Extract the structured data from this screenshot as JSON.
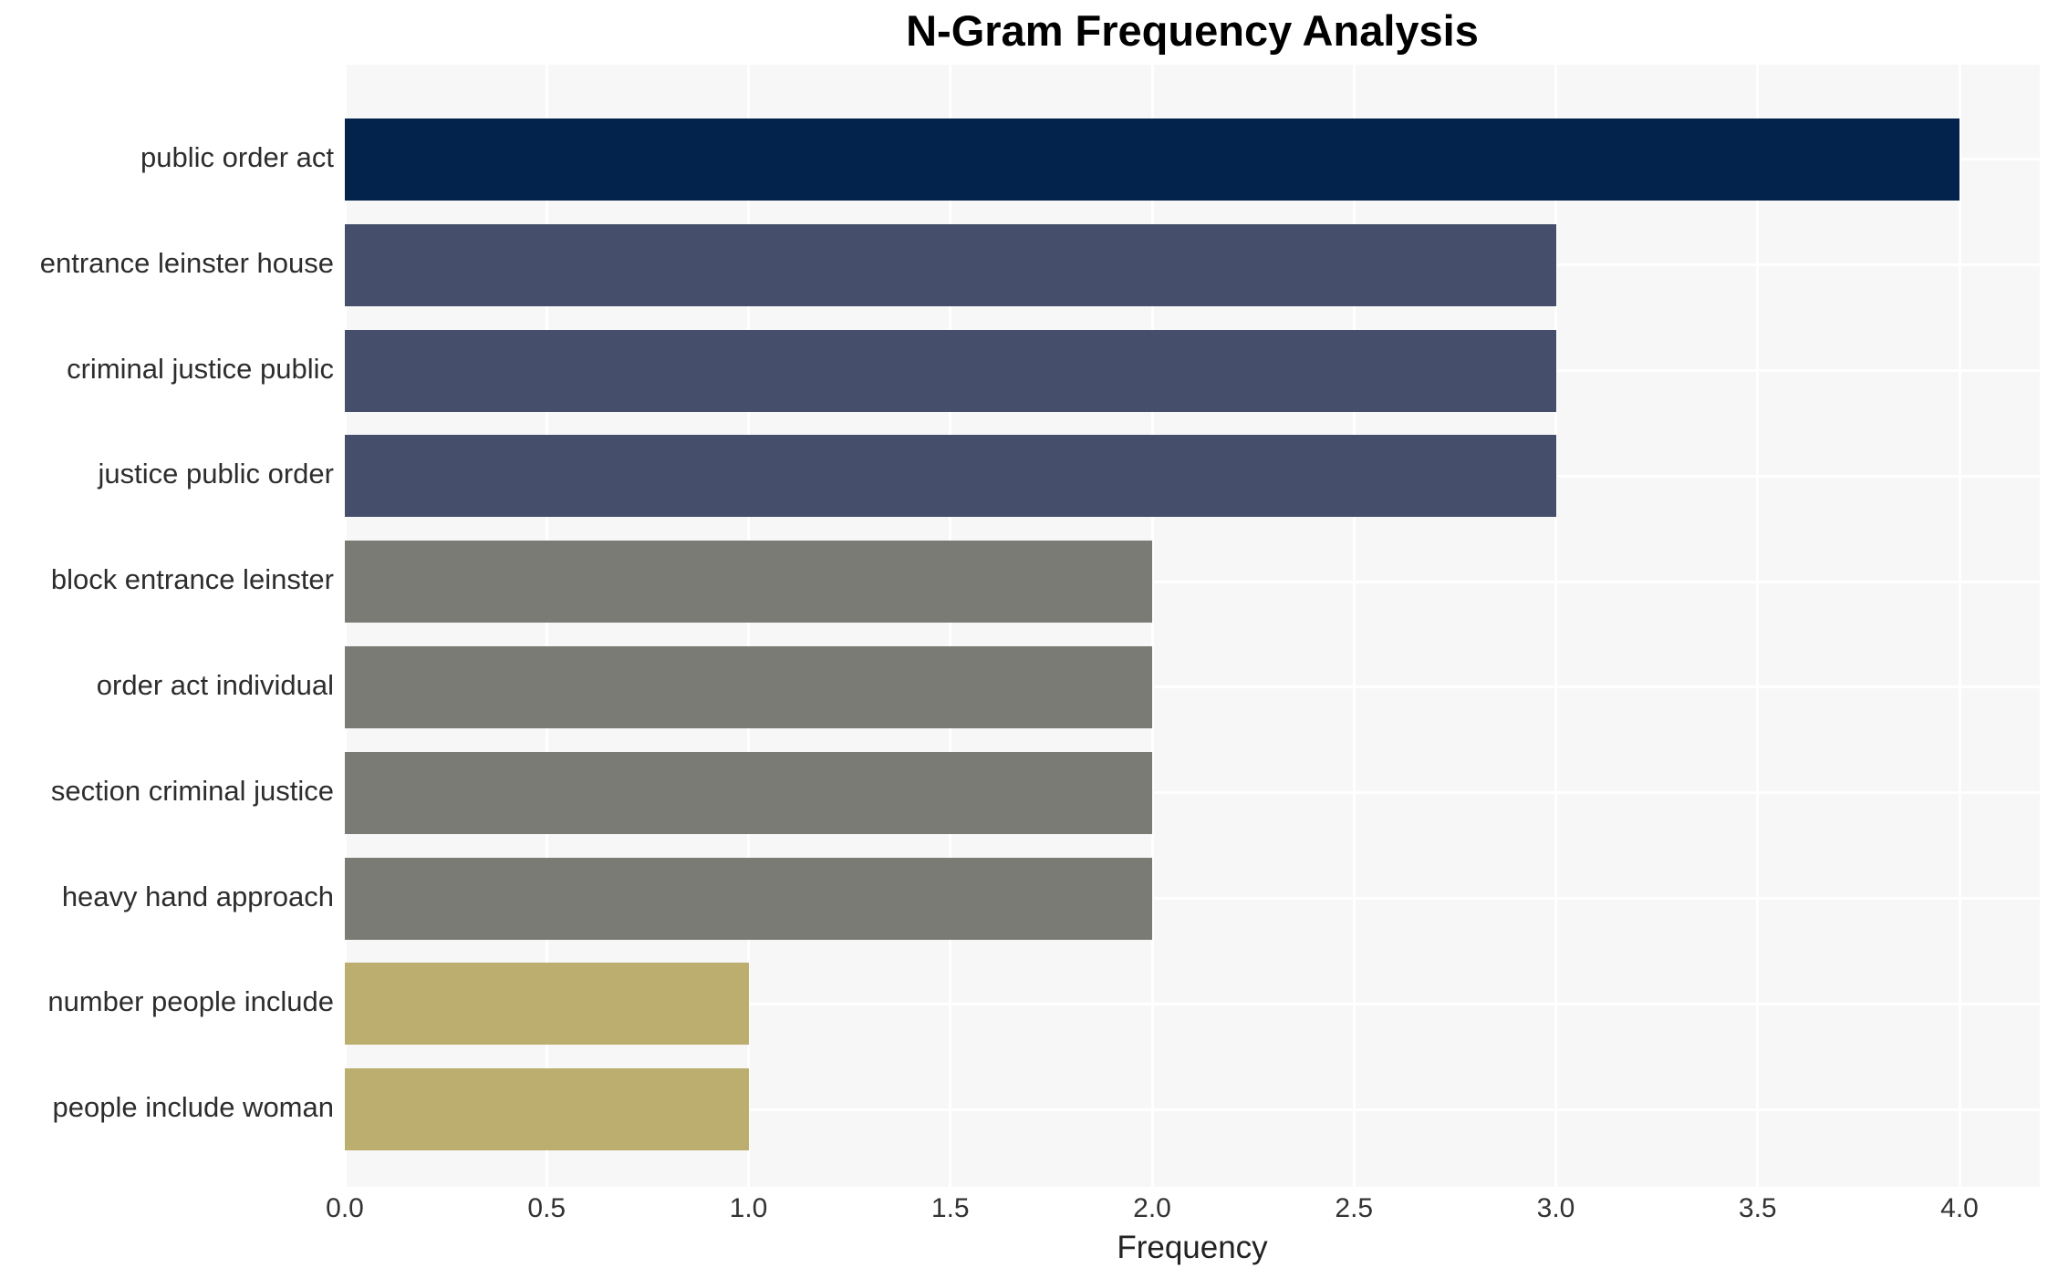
{
  "chart_data": {
    "type": "bar",
    "orientation": "horizontal",
    "title": "N-Gram Frequency Analysis",
    "xlabel": "Frequency",
    "ylabel": "",
    "categories": [
      "public order act",
      "entrance leinster house",
      "criminal justice public",
      "justice public order",
      "block entrance leinster",
      "order act individual",
      "section criminal justice",
      "heavy hand approach",
      "number people include",
      "people include woman"
    ],
    "values": [
      4,
      3,
      3,
      3,
      2,
      2,
      2,
      2,
      1,
      1
    ],
    "bar_colors": [
      "#03234c",
      "#454f6b",
      "#454f6b",
      "#454f6b",
      "#7b7b76",
      "#7b7b76",
      "#7b7b76",
      "#7b7b76",
      "#bcae6e",
      "#bcae6e"
    ],
    "xlim": [
      0,
      4.2
    ],
    "xticks": [
      0.0,
      0.5,
      1.0,
      1.5,
      2.0,
      2.5,
      3.0,
      3.5,
      4.0
    ],
    "xtick_labels": [
      "0.0",
      "0.5",
      "1.0",
      "1.5",
      "2.0",
      "2.5",
      "3.0",
      "3.5",
      "4.0"
    ],
    "grid": true,
    "legend": false,
    "colors": {
      "plot_background": "#f7f7f7",
      "grid": "#ffffff",
      "title_text": "#000000",
      "category_text": "#2d2d2d",
      "tick_text": "#333333"
    }
  }
}
